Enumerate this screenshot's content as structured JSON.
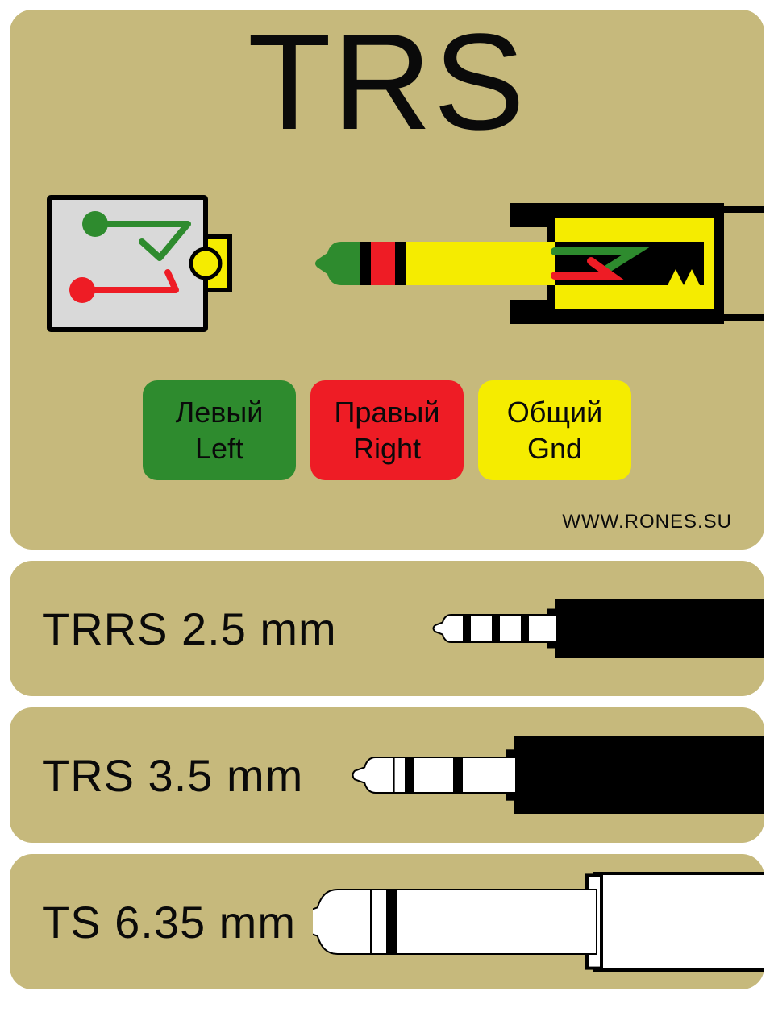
{
  "colors": {
    "panel_bg": "#c6b97c",
    "title": "#0a0a0a",
    "green": "#2e8b2e",
    "red": "#ee1c25",
    "yellow": "#f5ec00",
    "black": "#000000",
    "white": "#ffffff",
    "schematic_bg": "#d9d9d9",
    "schematic_stroke": "#000000"
  },
  "title": "TRS",
  "credit": "WWW.RONES.SU",
  "legend": [
    {
      "ru": "Левый",
      "en": "Left",
      "color": "#2e8b2e"
    },
    {
      "ru": "Правый",
      "en": "Right",
      "color": "#ee1c25"
    },
    {
      "ru": "Общий",
      "en": "Gnd",
      "color": "#f5ec00"
    }
  ],
  "jacks": [
    {
      "label": "TRRS 2.5 mm",
      "plug_len": 150,
      "plug_h": 34,
      "body_len": 260,
      "body_h": 74,
      "cable_h": 28,
      "rings": [
        0.24,
        0.48,
        0.72
      ],
      "ring_w": 10,
      "tip_color": "#ffffff",
      "body_color": "#000000"
    },
    {
      "label": "TRS 3.5 mm",
      "plug_len": 200,
      "plug_h": 44,
      "body_len": 310,
      "body_h": 96,
      "cable_h": 36,
      "rings": [
        0.32,
        0.62
      ],
      "ring_w": 12,
      "tip_color": "#ffffff",
      "body_color": "#000000"
    },
    {
      "label": "TS 6.35 mm",
      "plug_len": 370,
      "plug_h": 80,
      "body_len": 210,
      "body_h": 120,
      "cable_h": 0,
      "rings": [
        0.3
      ],
      "ring_w": 14,
      "tip_color": "#ffffff",
      "body_color": "#ffffff",
      "body_stroke": "#000000"
    }
  ],
  "trs_plug": {
    "tip_color": "#2e8b2e",
    "ring_color": "#ee1c25",
    "sleeve_color": "#f5ec00",
    "band_color": "#000000",
    "socket_body": "#f5ec00",
    "contact_left": "#2e8b2e",
    "contact_right": "#ee1c25"
  }
}
